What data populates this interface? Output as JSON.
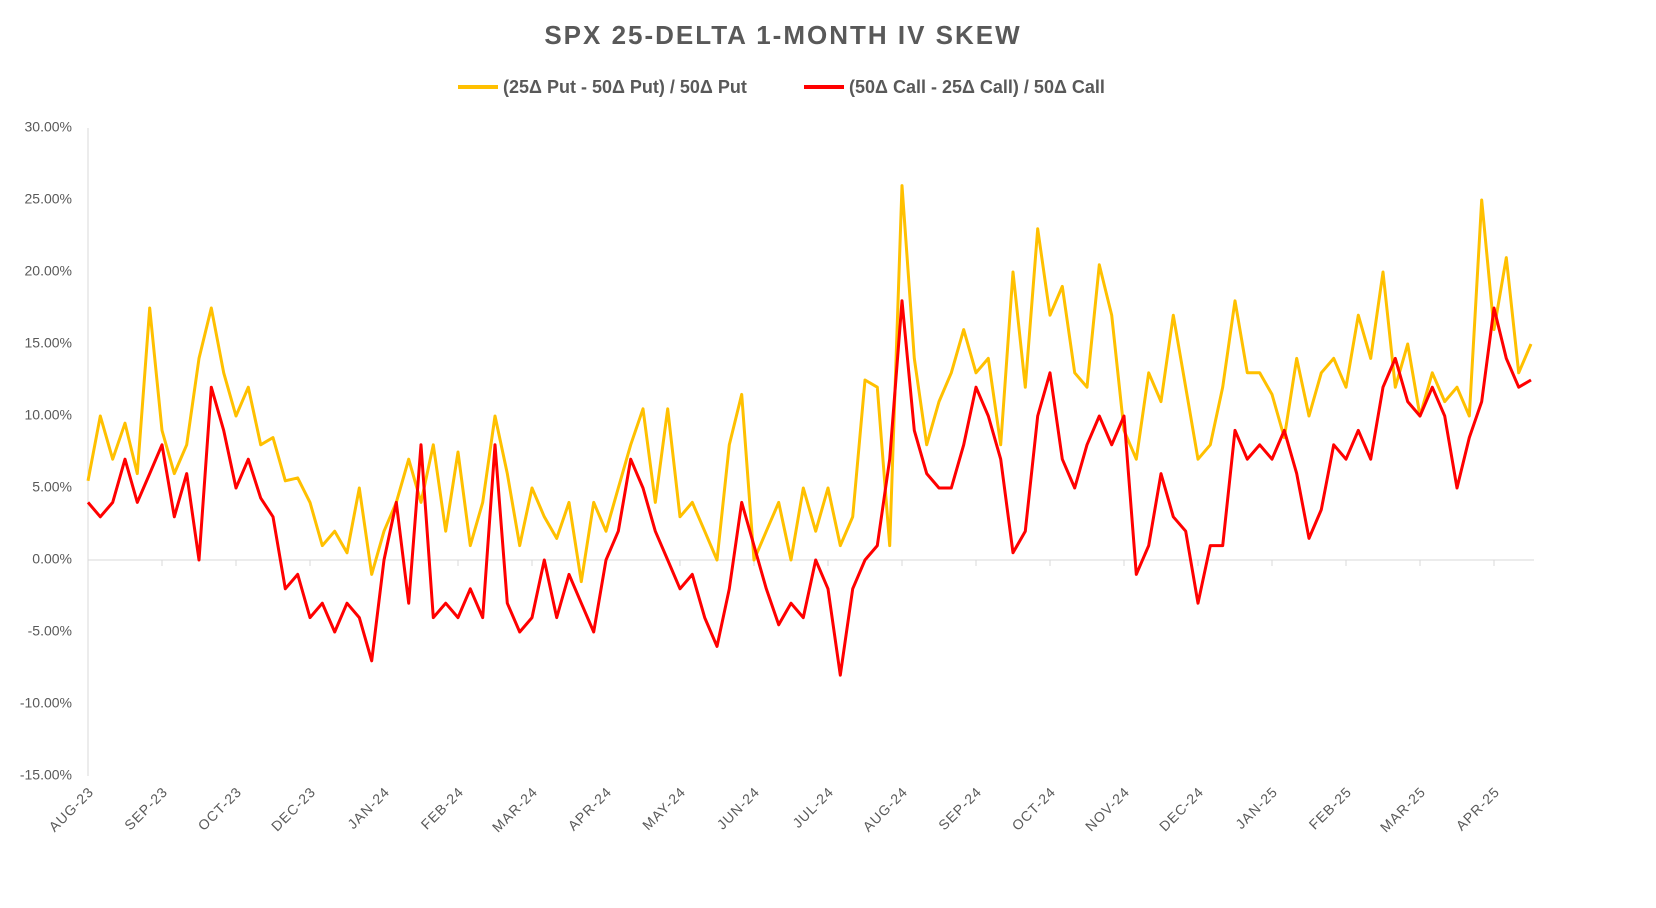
{
  "chart_data": {
    "type": "line",
    "title": "SPX 25-DELTA 1-MONTH IV SKEW",
    "categories": [
      "AUG-23",
      null,
      null,
      null,
      null,
      null,
      "SEP-23",
      null,
      null,
      null,
      null,
      null,
      "OCT-23",
      null,
      null,
      null,
      null,
      null,
      "DEC-23",
      null,
      null,
      null,
      null,
      null,
      "JAN-24",
      null,
      null,
      null,
      null,
      null,
      "FEB-24",
      null,
      null,
      null,
      null,
      null,
      "MAR-24",
      null,
      null,
      null,
      null,
      null,
      "APR-24",
      null,
      null,
      null,
      null,
      null,
      "MAY-24",
      null,
      null,
      null,
      null,
      null,
      "JUN-24",
      null,
      null,
      null,
      null,
      null,
      "JUL-24",
      null,
      null,
      null,
      null,
      null,
      "AUG-24",
      null,
      null,
      null,
      null,
      null,
      "SEP-24",
      null,
      null,
      null,
      null,
      null,
      "OCT-24",
      null,
      null,
      null,
      null,
      null,
      "NOV-24",
      null,
      null,
      null,
      null,
      null,
      "DEC-24",
      null,
      null,
      null,
      null,
      null,
      "JAN-25",
      null,
      null,
      null,
      null,
      null,
      "FEB-25",
      null,
      null,
      null,
      null,
      null,
      "MAR-25",
      null,
      null,
      null,
      null,
      null,
      "APR-25",
      null,
      null,
      null
    ],
    "series": [
      {
        "name": "(25Δ Put - 50Δ Put) / 50Δ Put",
        "color": "#FFC000",
        "values": [
          5.5,
          10,
          7,
          9.5,
          6,
          17.5,
          9,
          6,
          8,
          14,
          17.5,
          13,
          10,
          12,
          8,
          8.5,
          5.5,
          5.7,
          4,
          1,
          2,
          0.5,
          5,
          -1,
          2,
          4,
          7,
          4,
          8,
          2,
          7.5,
          1,
          4,
          10,
          6,
          1,
          5,
          3,
          1.5,
          4,
          -1.5,
          4,
          2,
          5,
          8,
          10.5,
          4,
          10.5,
          3,
          4,
          2,
          0,
          8,
          11.5,
          0,
          2,
          4,
          0,
          5,
          2,
          5,
          1,
          3,
          12.5,
          12,
          1,
          26,
          14,
          8,
          11,
          13,
          16,
          13,
          14,
          8,
          20,
          12,
          23,
          17,
          19,
          13,
          12,
          20.5,
          17,
          9,
          7,
          13,
          11,
          17,
          12,
          7,
          8,
          12,
          18,
          13,
          13,
          11.5,
          8.5,
          14,
          10,
          13,
          14,
          12,
          17,
          14,
          20,
          12,
          15,
          10,
          13,
          11,
          12,
          10,
          25,
          16,
          21,
          13,
          15
        ]
      },
      {
        "name": "(50Δ Call - 25Δ Call) / 50Δ Call",
        "color": "#FF0000",
        "values": [
          4,
          3,
          4,
          7,
          4,
          6,
          8,
          3,
          6,
          0,
          12,
          9,
          5,
          7,
          4.3,
          3,
          -2,
          -1,
          -4,
          -3,
          -5,
          -3,
          -4,
          -7,
          0,
          4,
          -3,
          8,
          -4,
          -3,
          -4,
          -2,
          -4,
          8,
          -3,
          -5,
          -4,
          0,
          -4,
          -1,
          -3,
          -5,
          0,
          2,
          7,
          5,
          2,
          0,
          -2,
          -1,
          -4,
          -6,
          -2,
          4,
          1,
          -2,
          -4.5,
          -3,
          -4,
          0,
          -2,
          -8,
          -2,
          0,
          1,
          7,
          18,
          9,
          6,
          5,
          5,
          8,
          12,
          10,
          7,
          0.5,
          2,
          10,
          13,
          7,
          5,
          8,
          10,
          8,
          10,
          -1,
          1,
          6,
          3,
          2,
          -3,
          1,
          1,
          9,
          7,
          8,
          7,
          9,
          6,
          1.5,
          3.5,
          8,
          7,
          9,
          7,
          12,
          14,
          11,
          10,
          12,
          10,
          5,
          8.5,
          11,
          17.5,
          14,
          12,
          12.5
        ]
      }
    ],
    "ylim": [
      -15,
      30
    ],
    "yticks": [
      {
        "value": -15,
        "label": "-15.00%"
      },
      {
        "value": -10,
        "label": "-10.00%"
      },
      {
        "value": -5,
        "label": "-5.00%"
      },
      {
        "value": 0,
        "label": "0.00%"
      },
      {
        "value": 5,
        "label": "5.00%"
      },
      {
        "value": 10,
        "label": "10.00%"
      },
      {
        "value": 15,
        "label": "15.00%"
      },
      {
        "value": 20,
        "label": "20.00%"
      },
      {
        "value": 25,
        "label": "25.00%"
      },
      {
        "value": 30,
        "label": "30.00%"
      }
    ],
    "legend": "top"
  }
}
